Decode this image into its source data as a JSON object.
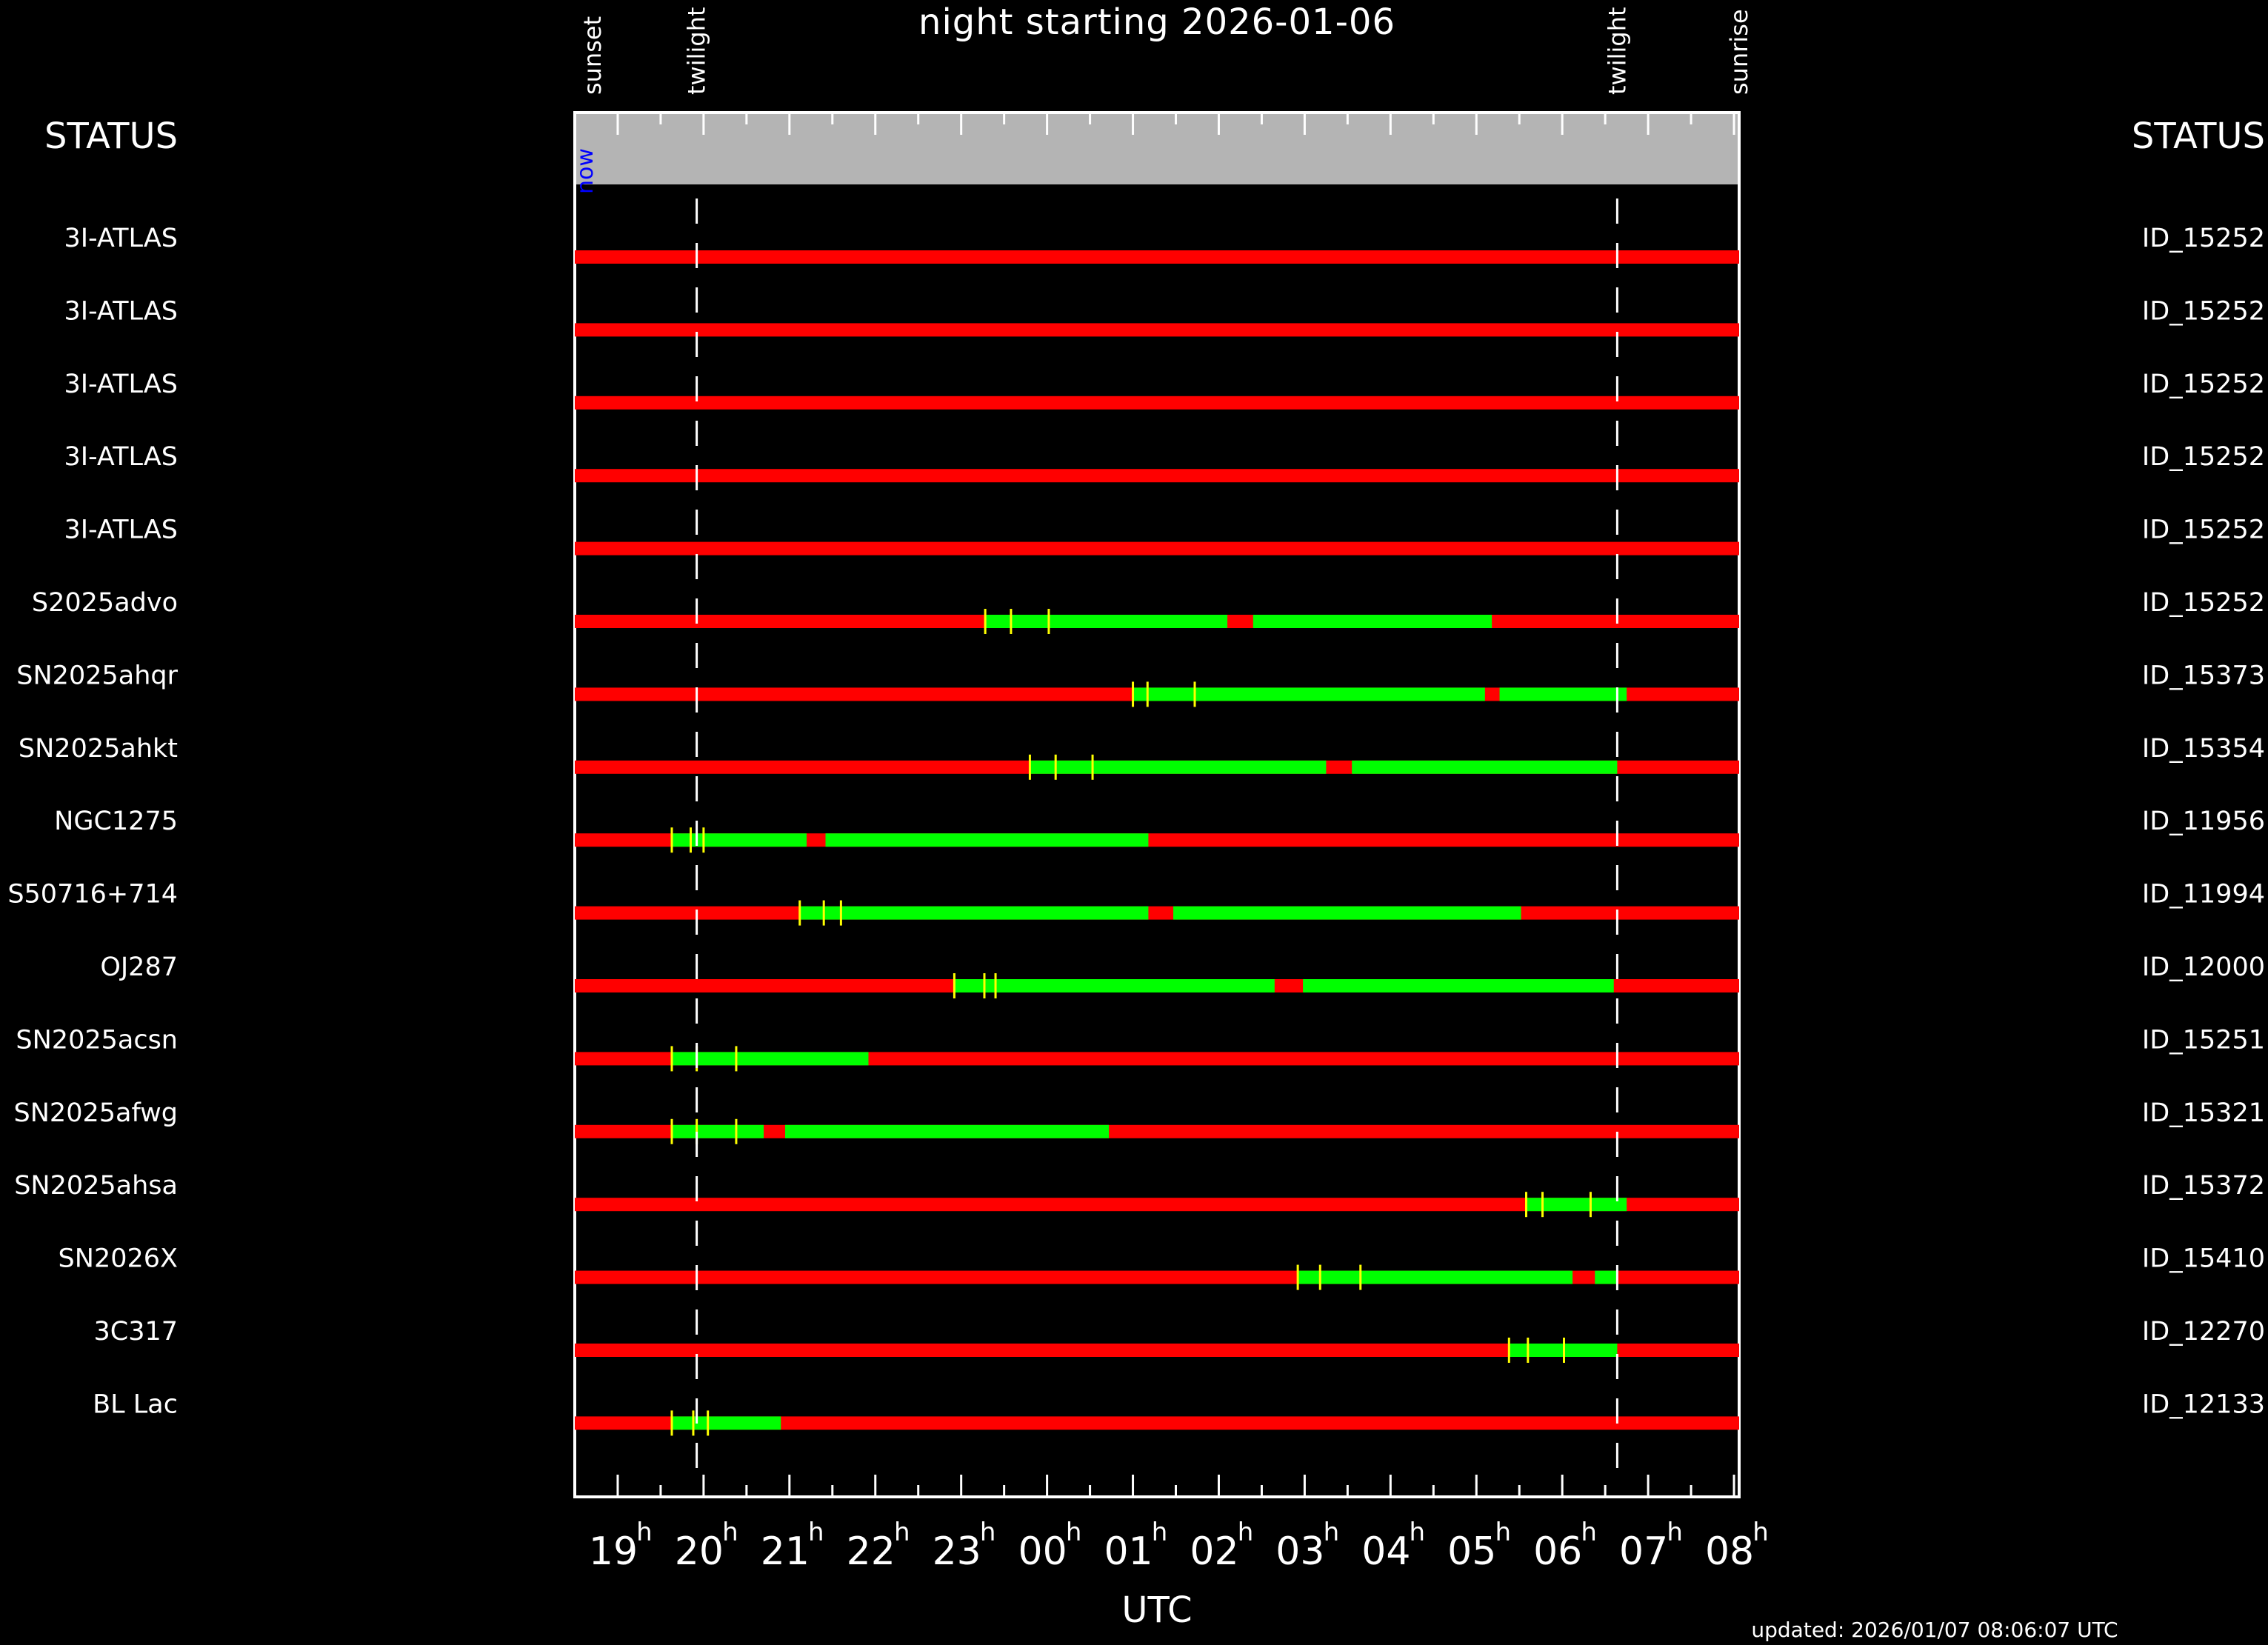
{
  "chart_data": {
    "type": "timeline",
    "title": "night starting 2026-01-06",
    "xlabel": "UTC",
    "status_label": "STATUS",
    "now_label": "now",
    "updated": "updated: 2026/01/07 08:06:07 UTC",
    "xlim": [
      18.5,
      32.06
    ],
    "ticks": [
      {
        "value": 19,
        "label": "19"
      },
      {
        "value": 20,
        "label": "20"
      },
      {
        "value": 21,
        "label": "21"
      },
      {
        "value": 22,
        "label": "22"
      },
      {
        "value": 23,
        "label": "23"
      },
      {
        "value": 24,
        "label": "00"
      },
      {
        "value": 25,
        "label": "01"
      },
      {
        "value": 26,
        "label": "02"
      },
      {
        "value": 27,
        "label": "03"
      },
      {
        "value": 28,
        "label": "04"
      },
      {
        "value": 29,
        "label": "05"
      },
      {
        "value": 30,
        "label": "06"
      },
      {
        "value": 31,
        "label": "07"
      },
      {
        "value": 32,
        "label": "08"
      }
    ],
    "tick_superscript": "h",
    "events": [
      {
        "label": "sunset",
        "x": 18.5,
        "line": false
      },
      {
        "label": "twilight",
        "x": 19.92,
        "line": true
      },
      {
        "label": "twilight",
        "x": 30.64,
        "line": true
      },
      {
        "label": "sunrise",
        "x": 32.06,
        "line": false
      }
    ],
    "now_x": 18.62,
    "colors": {
      "unavailable": "#ff0000",
      "available": "#00ff00",
      "marker": "#ffff00",
      "header": "#b4b4b4",
      "now": "#0000ff"
    },
    "targets": [
      {
        "name": "3I-ATLAS",
        "id": "ID_15252",
        "windows": [],
        "markers": []
      },
      {
        "name": "3I-ATLAS",
        "id": "ID_15252",
        "windows": [],
        "markers": []
      },
      {
        "name": "3I-ATLAS",
        "id": "ID_15252",
        "windows": [],
        "markers": []
      },
      {
        "name": "3I-ATLAS",
        "id": "ID_15252",
        "windows": [],
        "markers": []
      },
      {
        "name": "3I-ATLAS",
        "id": "ID_15252",
        "windows": [],
        "markers": []
      },
      {
        "name": "S2025advo",
        "id": "ID_15252",
        "windows": [
          [
            23.28,
            26.1
          ],
          [
            26.4,
            29.18
          ]
        ],
        "markers": [
          23.28,
          23.58,
          24.02
        ]
      },
      {
        "name": "SN2025ahqr",
        "id": "ID_15373",
        "windows": [
          [
            25.0,
            29.1
          ],
          [
            29.27,
            30.75
          ]
        ],
        "markers": [
          25.0,
          25.17,
          25.72
        ]
      },
      {
        "name": "SN2025ahkt",
        "id": "ID_15354",
        "windows": [
          [
            23.8,
            27.25
          ],
          [
            27.55,
            30.64
          ]
        ],
        "markers": [
          23.8,
          24.1,
          24.53
        ]
      },
      {
        "name": "NGC1275",
        "id": "ID_11956",
        "windows": [
          [
            19.63,
            21.2
          ],
          [
            21.42,
            25.18
          ]
        ],
        "markers": [
          19.63,
          19.85,
          20.0
        ]
      },
      {
        "name": "S50716+714",
        "id": "ID_11994",
        "windows": [
          [
            21.12,
            25.18
          ],
          [
            25.47,
            29.52
          ]
        ],
        "markers": [
          21.12,
          21.4,
          21.6
        ]
      },
      {
        "name": "OJ287",
        "id": "ID_12000",
        "windows": [
          [
            22.92,
            26.65
          ],
          [
            26.98,
            30.6
          ]
        ],
        "markers": [
          22.92,
          23.27,
          23.4
        ]
      },
      {
        "name": "SN2025acsn",
        "id": "ID_15251",
        "windows": [
          [
            19.63,
            21.92
          ]
        ],
        "markers": [
          19.63,
          19.92,
          20.38
        ]
      },
      {
        "name": "SN2025afwg",
        "id": "ID_15321",
        "windows": [
          [
            19.63,
            20.7
          ],
          [
            20.95,
            24.72
          ]
        ],
        "markers": [
          19.63,
          19.92,
          20.38
        ]
      },
      {
        "name": "SN2025ahsa",
        "id": "ID_15372",
        "windows": [
          [
            29.58,
            30.75
          ]
        ],
        "markers": [
          29.58,
          29.77,
          30.33
        ]
      },
      {
        "name": "SN2026X",
        "id": "ID_15410",
        "windows": [
          [
            26.92,
            30.12
          ],
          [
            30.38,
            30.64
          ]
        ],
        "markers": [
          26.92,
          27.18,
          27.65
        ]
      },
      {
        "name": "3C317",
        "id": "ID_12270",
        "windows": [
          [
            29.38,
            30.64
          ]
        ],
        "markers": [
          29.38,
          29.6,
          30.02
        ]
      },
      {
        "name": "BL Lac",
        "id": "ID_12133",
        "windows": [
          [
            19.63,
            20.9
          ]
        ],
        "markers": [
          19.63,
          19.88,
          20.05
        ]
      }
    ]
  }
}
